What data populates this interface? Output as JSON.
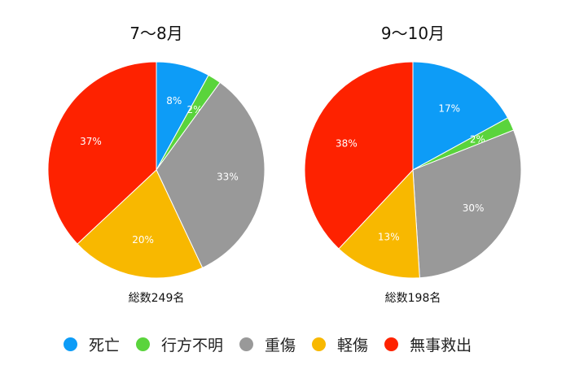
{
  "chart_data": [
    {
      "type": "pie",
      "title": "7〜8月",
      "caption": "総数249名",
      "categories": [
        "死亡",
        "行方不明",
        "重傷",
        "軽傷",
        "無事救出"
      ],
      "values": [
        8,
        2,
        33,
        20,
        37
      ],
      "labels": [
        "8%",
        "2%",
        "33%",
        "20%",
        "37%"
      ]
    },
    {
      "type": "pie",
      "title": "9〜10月",
      "caption": "総数198名",
      "categories": [
        "死亡",
        "行方不明",
        "重傷",
        "軽傷",
        "無事救出"
      ],
      "values": [
        17,
        2,
        30,
        13,
        38
      ],
      "labels": [
        "17%",
        "2%",
        "30%",
        "13%",
        "38%"
      ]
    }
  ],
  "legend": {
    "placement": "bottom",
    "items": [
      "死亡",
      "行方不明",
      "重傷",
      "軽傷",
      "無事救出"
    ]
  },
  "colors": [
    "#0d9cf7",
    "#5ad43c",
    "#999999",
    "#f8b800",
    "#fe2200"
  ]
}
